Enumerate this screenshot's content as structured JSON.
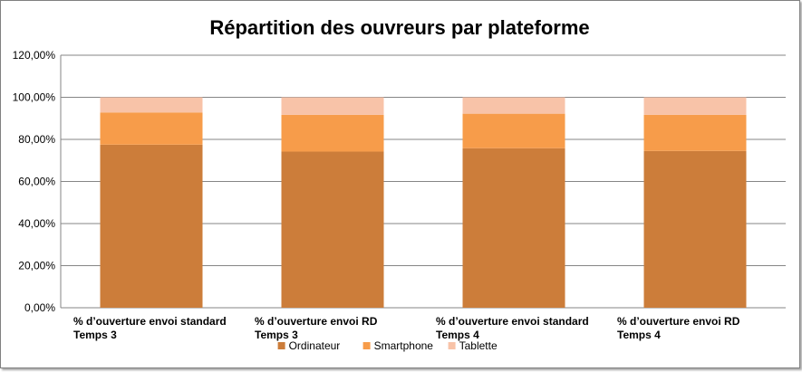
{
  "chart_data": {
    "type": "bar",
    "stacked": true,
    "title": "Répartition des ouvreurs par plateforme",
    "categories": [
      [
        "% d’ouverture envoi standard",
        "Temps 3"
      ],
      [
        "% d’ouverture envoi RD",
        "Temps 3"
      ],
      [
        "% d’ouverture envoi standard",
        "Temps 4"
      ],
      [
        "% d’ouverture envoi RD",
        "Temps 4"
      ]
    ],
    "series": [
      {
        "name": "Ordinateur",
        "color": "#CC7D3A",
        "values": [
          77.5,
          74.2,
          75.8,
          74.5
        ]
      },
      {
        "name": "Smartphone",
        "color": "#F79C4A",
        "values": [
          15.3,
          17.5,
          16.4,
          17.2
        ]
      },
      {
        "name": "Tablette",
        "color": "#F8C3A8",
        "values": [
          7.2,
          8.3,
          7.8,
          8.3
        ]
      }
    ],
    "ylim": [
      0,
      120
    ],
    "yticks": [
      "0,00%",
      "20,00%",
      "40,00%",
      "60,00%",
      "80,00%",
      "100,00%",
      "120,00%"
    ],
    "grid": true,
    "legend": "bottom"
  }
}
